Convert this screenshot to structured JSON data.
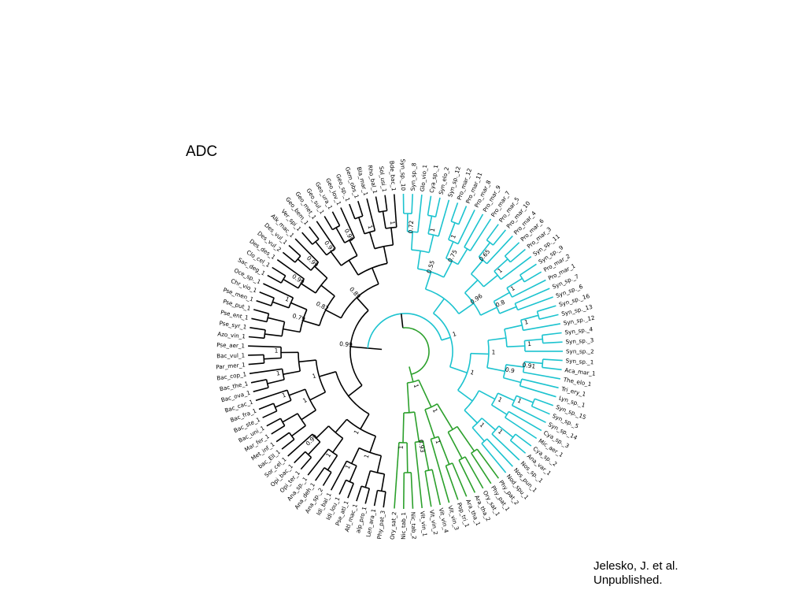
{
  "title": "ADC",
  "credit": {
    "line1": "Jelesko, J. et al.",
    "line2": "Unpublished."
  },
  "colors": {
    "plant": "#2ca02c",
    "cyano": "#1cc3cf",
    "other": "#000000"
  },
  "leaves": [
    {
      "label": "Phy_pat_3",
      "clade": "other"
    },
    {
      "label": "Len_ara_1",
      "clade": "other"
    },
    {
      "label": "alp_pro_1",
      "clade": "other"
    },
    {
      "label": "Atl_mac_1",
      "clade": "other"
    },
    {
      "label": "Pse_atl_1",
      "clade": "other"
    },
    {
      "label": "Idi_lou_1",
      "clade": "other"
    },
    {
      "label": "Idi_bal_1",
      "clade": "other"
    },
    {
      "label": "Ana_sp._2",
      "clade": "other"
    },
    {
      "label": "Ana_deh_1",
      "clade": "other"
    },
    {
      "label": "Ana_sp._1",
      "clade": "other"
    },
    {
      "label": "Opi_ter_1",
      "clade": "other"
    },
    {
      "label": "Opi_bac_1",
      "clade": "other"
    },
    {
      "label": "Sor_cel_1",
      "clade": "other"
    },
    {
      "label": "bac_Ell_1",
      "clade": "other"
    },
    {
      "label": "Met_inf_1",
      "clade": "other"
    },
    {
      "label": "Mar_fer_1",
      "clade": "other"
    },
    {
      "label": "Bac_uni_1",
      "clade": "other"
    },
    {
      "label": "Bac_ste_1",
      "clade": "other"
    },
    {
      "label": "Bac_fra_1",
      "clade": "other"
    },
    {
      "label": "Bac_cac_1",
      "clade": "other"
    },
    {
      "label": "Bac_ova_1",
      "clade": "other"
    },
    {
      "label": "Bac_the_1",
      "clade": "other"
    },
    {
      "label": "Bac_cop_1",
      "clade": "other"
    },
    {
      "label": "Par_mer_1",
      "clade": "other"
    },
    {
      "label": "Bac_vul_1",
      "clade": "other"
    },
    {
      "label": "Pse_aer_1",
      "clade": "other"
    },
    {
      "label": "Azo_vin_1",
      "clade": "other"
    },
    {
      "label": "Pse_syr_1",
      "clade": "other"
    },
    {
      "label": "Pse_ent_1",
      "clade": "other"
    },
    {
      "label": "Pse_put_1",
      "clade": "other"
    },
    {
      "label": "Pse_men_1",
      "clade": "other"
    },
    {
      "label": "Chr_vio_1",
      "clade": "other"
    },
    {
      "label": "Oce_sp._1",
      "clade": "other"
    },
    {
      "label": "Sac_deg_1",
      "clade": "other"
    },
    {
      "label": "Clo_cel_1",
      "clade": "other"
    },
    {
      "label": "Des_des_1",
      "clade": "other"
    },
    {
      "label": "Des_vul_2",
      "clade": "other"
    },
    {
      "label": "Des_vul_1",
      "clade": "other"
    },
    {
      "label": "Alk_mac_1",
      "clade": "other"
    },
    {
      "label": "Ver_spi_1",
      "clade": "other"
    },
    {
      "label": "Geo_bem_1",
      "clade": "other"
    },
    {
      "label": "Geo_met_1",
      "clade": "other"
    },
    {
      "label": "Geo_sul_1",
      "clade": "other"
    },
    {
      "label": "Geo_ura_1",
      "clade": "other"
    },
    {
      "label": "Geo_lov_1",
      "clade": "other"
    },
    {
      "label": "Geo_sp._1",
      "clade": "other"
    },
    {
      "label": "Gem_obs_1",
      "clade": "other"
    },
    {
      "label": "Bla_mar_1",
      "clade": "other"
    },
    {
      "label": "Rho_bal_1",
      "clade": "other"
    },
    {
      "label": "Sol_usi_1",
      "clade": "other"
    },
    {
      "label": "Bde_bac_1",
      "clade": "other"
    },
    {
      "label": "Syn_sp._10",
      "clade": "cyano"
    },
    {
      "label": "Syn_sp._8",
      "clade": "cyano"
    },
    {
      "label": "Glo_vio_1",
      "clade": "cyano"
    },
    {
      "label": "Cya_sp._1",
      "clade": "cyano"
    },
    {
      "label": "Syn_elo_2",
      "clade": "cyano"
    },
    {
      "label": "Syn_sp._12",
      "clade": "cyano"
    },
    {
      "label": "Pro_mar_12",
      "clade": "cyano"
    },
    {
      "label": "Pro_mar_11",
      "clade": "cyano"
    },
    {
      "label": "Pro_mar_8",
      "clade": "cyano"
    },
    {
      "label": "Pro_mar_9",
      "clade": "cyano"
    },
    {
      "label": "Pro_mar_7",
      "clade": "cyano"
    },
    {
      "label": "Pro_mar_5",
      "clade": "cyano"
    },
    {
      "label": "Pro_mar_10",
      "clade": "cyano"
    },
    {
      "label": "Pro_mar_4",
      "clade": "cyano"
    },
    {
      "label": "Pro_mar_6",
      "clade": "cyano"
    },
    {
      "label": "Pro_mar_3",
      "clade": "cyano"
    },
    {
      "label": "Syn_sp._11",
      "clade": "cyano"
    },
    {
      "label": "Syn_sp._9",
      "clade": "cyano"
    },
    {
      "label": "Pro_mar_2",
      "clade": "cyano"
    },
    {
      "label": "Pro_mar_1",
      "clade": "cyano"
    },
    {
      "label": "Syn_sp._7",
      "clade": "cyano"
    },
    {
      "label": "Syn_sp._6",
      "clade": "cyano"
    },
    {
      "label": "Syn_sp._16",
      "clade": "cyano"
    },
    {
      "label": "Syn_sp._13",
      "clade": "cyano"
    },
    {
      "label": "Syn_sp._12",
      "clade": "cyano"
    },
    {
      "label": "Syn_sp._4",
      "clade": "cyano"
    },
    {
      "label": "Syn_sp._3",
      "clade": "cyano"
    },
    {
      "label": "Syn_sp._2",
      "clade": "cyano"
    },
    {
      "label": "Syn_sp._1",
      "clade": "cyano"
    },
    {
      "label": "Aca_mar_1",
      "clade": "cyano"
    },
    {
      "label": "The_elo_1",
      "clade": "cyano"
    },
    {
      "label": "Tri_ery_1",
      "clade": "cyano"
    },
    {
      "label": "Lyn_sp._1",
      "clade": "cyano"
    },
    {
      "label": "Syn_sp._15",
      "clade": "cyano"
    },
    {
      "label": "Syn_sp._5",
      "clade": "cyano"
    },
    {
      "label": "Syn_sp._14",
      "clade": "cyano"
    },
    {
      "label": "Cya_sp._3",
      "clade": "cyano"
    },
    {
      "label": "Mic_aer_1",
      "clade": "cyano"
    },
    {
      "label": "Cya_sp._2",
      "clade": "cyano"
    },
    {
      "label": "Ana_var_1",
      "clade": "cyano"
    },
    {
      "label": "Nos_sp._1",
      "clade": "cyano"
    },
    {
      "label": "Nos_pun_1",
      "clade": "cyano"
    },
    {
      "label": "Nod_spu_1",
      "clade": "cyano"
    },
    {
      "label": "Phy_pat_2",
      "clade": "plant"
    },
    {
      "label": "Phy_pat_1",
      "clade": "plant"
    },
    {
      "label": "Ory_sat_1",
      "clade": "plant"
    },
    {
      "label": "Ara_tha_2",
      "clade": "plant"
    },
    {
      "label": "Ara_tha_1",
      "clade": "plant"
    },
    {
      "label": "Pop_tri_1",
      "clade": "plant"
    },
    {
      "label": "Vit_vin_3",
      "clade": "plant"
    },
    {
      "label": "Vit_vin_4",
      "clade": "plant"
    },
    {
      "label": "Vit_vin_2",
      "clade": "plant"
    },
    {
      "label": "Vit_vin_1",
      "clade": "plant"
    },
    {
      "label": "Nic_tab_2",
      "clade": "plant"
    },
    {
      "label": "Nic_tab_1",
      "clade": "plant"
    },
    {
      "label": "Ory_sat_2",
      "clade": "plant"
    }
  ],
  "support_values": [
    {
      "value": "1",
      "clade": "plant"
    },
    {
      "value": "1",
      "clade": "plant"
    },
    {
      "value": "1",
      "clade": "plant"
    },
    {
      "value": "0.99",
      "clade": "plant"
    },
    {
      "value": "1",
      "clade": "plant"
    },
    {
      "value": "1",
      "clade": "plant"
    },
    {
      "value": "1",
      "clade": "plant"
    },
    {
      "value": "1",
      "clade": "plant"
    },
    {
      "value": "1",
      "clade": "plant"
    },
    {
      "value": "1",
      "clade": "cyano"
    },
    {
      "value": "1",
      "clade": "cyano"
    },
    {
      "value": "0.79",
      "clade": "cyano"
    },
    {
      "value": "0.99",
      "clade": "cyano"
    },
    {
      "value": "0.99",
      "clade": "cyano"
    },
    {
      "value": "0.82",
      "clade": "cyano"
    },
    {
      "value": "0.92",
      "clade": "cyano"
    },
    {
      "value": "0.99",
      "clade": "cyano"
    },
    {
      "value": "1",
      "clade": "cyano"
    },
    {
      "value": "1",
      "clade": "cyano"
    },
    {
      "value": "0.89",
      "clade": "cyano"
    },
    {
      "value": "0.99",
      "clade": "cyano"
    },
    {
      "value": "0.72",
      "clade": "cyano"
    },
    {
      "value": "1",
      "clade": "cyano"
    },
    {
      "value": "1",
      "clade": "cyano"
    },
    {
      "value": "0.75",
      "clade": "cyano"
    },
    {
      "value": "0.55",
      "clade": "cyano"
    },
    {
      "value": "0.65",
      "clade": "cyano"
    },
    {
      "value": "1",
      "clade": "cyano"
    },
    {
      "value": "1",
      "clade": "cyano"
    },
    {
      "value": "0.8",
      "clade": "cyano"
    },
    {
      "value": "0.96",
      "clade": "cyano"
    },
    {
      "value": "1",
      "clade": "cyano"
    },
    {
      "value": "1",
      "clade": "cyano"
    },
    {
      "value": "0.91",
      "clade": "cyano"
    },
    {
      "value": "0.9",
      "clade": "cyano"
    },
    {
      "value": "1",
      "clade": "cyano"
    },
    {
      "value": "1",
      "clade": "cyano"
    },
    {
      "value": "1",
      "clade": "cyano"
    },
    {
      "value": "1",
      "clade": "cyano"
    },
    {
      "value": "1",
      "clade": "cyano"
    },
    {
      "value": "1",
      "clade": "other"
    },
    {
      "value": "1",
      "clade": "other"
    },
    {
      "value": "1",
      "clade": "other"
    },
    {
      "value": "1",
      "clade": "other"
    },
    {
      "value": "0.93",
      "clade": "other"
    },
    {
      "value": "1",
      "clade": "other"
    },
    {
      "value": "1",
      "clade": "other"
    },
    {
      "value": "1",
      "clade": "other"
    },
    {
      "value": "0.98",
      "clade": "other"
    },
    {
      "value": "0.89",
      "clade": "other"
    },
    {
      "value": "0.89",
      "clade": "other"
    },
    {
      "value": "1",
      "clade": "other"
    },
    {
      "value": "1",
      "clade": "other"
    },
    {
      "value": "0.98",
      "clade": "other"
    },
    {
      "value": "1",
      "clade": "other"
    },
    {
      "value": "1",
      "clade": "other"
    },
    {
      "value": "0.98",
      "clade": "other"
    },
    {
      "value": "1",
      "clade": "other"
    },
    {
      "value": "1",
      "clade": "other"
    },
    {
      "value": "0.87",
      "clade": "other"
    },
    {
      "value": "1",
      "clade": "other"
    },
    {
      "value": "1",
      "clade": "other"
    },
    {
      "value": "1",
      "clade": "other"
    },
    {
      "value": "1",
      "clade": "other"
    },
    {
      "value": "0.99",
      "clade": "other"
    },
    {
      "value": "1",
      "clade": "other"
    }
  ]
}
